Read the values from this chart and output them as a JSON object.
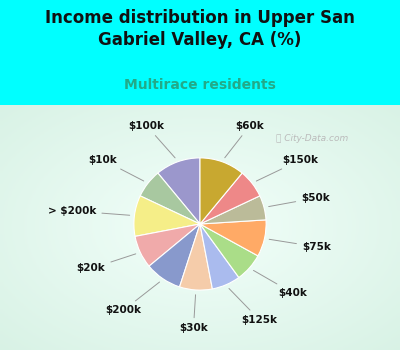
{
  "title": "Income distribution in Upper San\nGabriel Valley, CA (%)",
  "subtitle": "Multirace residents",
  "bg_color": "#00FFFF",
  "chart_bg_color": "#e0f5ee",
  "watermark": "City-Data.com",
  "labels": [
    "$100k",
    "$10k",
    "> $200k",
    "$20k",
    "$200k",
    "$30k",
    "$125k",
    "$40k",
    "$75k",
    "$50k",
    "$150k",
    "$60k"
  ],
  "values": [
    11,
    7,
    10,
    8,
    9,
    8,
    7,
    7,
    9,
    6,
    7,
    11
  ],
  "colors": [
    "#9B97CC",
    "#A8C8A0",
    "#F5EE88",
    "#F0AAAA",
    "#8899CC",
    "#F5CCAA",
    "#AABBEE",
    "#AADD88",
    "#FFAA66",
    "#BBBB99",
    "#EE8888",
    "#C8A830"
  ],
  "startangle": 90,
  "title_fontsize": 12,
  "subtitle_fontsize": 10,
  "label_fontsize": 7.5,
  "title_color": "#111111",
  "subtitle_color": "#22AA88",
  "label_color": "#111111"
}
